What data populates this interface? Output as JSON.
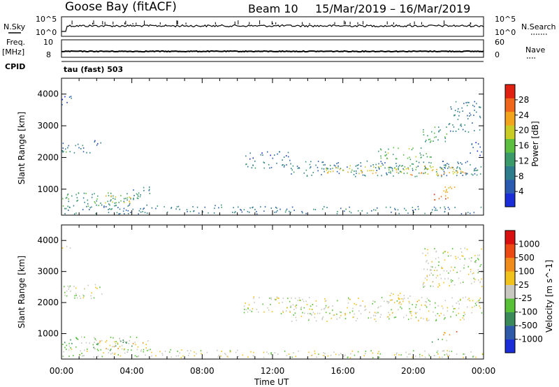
{
  "header": {
    "station": "Goose Bay (fitACF)",
    "beam": "Beam 10",
    "date_range": "15/Mar/2019 – 16/Mar/2019"
  },
  "top_panels": {
    "nsky_label": "N.Sky",
    "nsky_ticks": [
      "10^5",
      "10^0"
    ],
    "nsearch_label": "N.Search",
    "nsearch_ticks": [
      "10^5",
      "10^0"
    ],
    "freq_label_1": "Freq.",
    "freq_label_2": "[MHz]",
    "freq_ticks": [
      "10",
      "8"
    ],
    "nave_label": "Nave",
    "nave_ticks": [
      "60",
      "0"
    ],
    "cpid_label": "CPID",
    "cpid_value": "tau (fast) 503"
  },
  "colors": {
    "power_scale": [
      "#1a2dd6",
      "#2a5bb0",
      "#2e7d8c",
      "#3a9a6a",
      "#5cbf40",
      "#c8cc24",
      "#f2a51c",
      "#f0661a",
      "#e02010"
    ],
    "velocity_scale": [
      "#1a2dd6",
      "#2e5aa8",
      "#3a8a5a",
      "#58c036",
      "#c8c8c0",
      "#f2c21c",
      "#f08c1c",
      "#ec4a14",
      "#d81010"
    ]
  },
  "chart_data": [
    {
      "type": "heatmap",
      "title": "",
      "xlabel": "Time UT",
      "ylabel": "Slant Range [km]",
      "colorbar_label": "Power [dB]",
      "colorbar_ticks": [
        "28",
        "24",
        "20",
        "16",
        "12",
        "8",
        "4"
      ],
      "x_ticks": [
        "00:00",
        "04:00",
        "08:00",
        "12:00",
        "16:00",
        "20:00",
        "00:00"
      ],
      "y_ticks": [
        "1000",
        "2000",
        "3000",
        "4000"
      ],
      "xlim_hours": [
        0,
        24
      ],
      "ylim_km": [
        180,
        4500
      ],
      "regions": [
        {
          "t0": 0.0,
          "t1": 0.6,
          "r0": 3700,
          "r1": 4000,
          "level": 1
        },
        {
          "t0": 0.0,
          "t1": 1.8,
          "r0": 2100,
          "r1": 2500,
          "level": 2
        },
        {
          "t0": 0.0,
          "t1": 0.5,
          "r0": 2150,
          "r1": 2350,
          "level": 4
        },
        {
          "t0": 1.7,
          "t1": 2.3,
          "r0": 2400,
          "r1": 2600,
          "level": 1
        },
        {
          "t0": 0.0,
          "t1": 4.5,
          "r0": 450,
          "r1": 900,
          "level": 3
        },
        {
          "t0": 2.0,
          "t1": 4.0,
          "r0": 550,
          "r1": 800,
          "level": 5
        },
        {
          "t0": 0.0,
          "t1": 10.0,
          "r0": 180,
          "r1": 500,
          "level": 2
        },
        {
          "t0": 4.0,
          "t1": 5.0,
          "r0": 700,
          "r1": 1100,
          "level": 2
        },
        {
          "t0": 10.3,
          "t1": 24.0,
          "r0": 1650,
          "r1": 1900,
          "level": 2
        },
        {
          "t0": 10.3,
          "t1": 13.0,
          "r0": 1900,
          "r1": 2200,
          "level": 1
        },
        {
          "t0": 13.0,
          "t1": 24.0,
          "r0": 1400,
          "r1": 1700,
          "level": 2
        },
        {
          "t0": 15.0,
          "t1": 22.5,
          "r0": 1500,
          "r1": 1750,
          "level": 5
        },
        {
          "t0": 19.5,
          "t1": 23.0,
          "r0": 1450,
          "r1": 1650,
          "level": 6
        },
        {
          "t0": 18.0,
          "t1": 21.0,
          "r0": 1950,
          "r1": 2350,
          "level": 4
        },
        {
          "t0": 21.3,
          "t1": 22.6,
          "r0": 900,
          "r1": 1100,
          "level": 6
        },
        {
          "t0": 21.0,
          "t1": 22.0,
          "r0": 650,
          "r1": 850,
          "level": 7
        },
        {
          "t0": 20.5,
          "t1": 22.0,
          "r0": 2500,
          "r1": 3000,
          "level": 3
        },
        {
          "t0": 22.0,
          "t1": 23.8,
          "r0": 2800,
          "r1": 3800,
          "level": 2
        },
        {
          "t0": 23.2,
          "t1": 24.0,
          "r0": 2000,
          "r1": 2500,
          "level": 1
        },
        {
          "t0": 10.0,
          "t1": 24.0,
          "r0": 180,
          "r1": 450,
          "level": 2
        }
      ]
    },
    {
      "type": "heatmap",
      "title": "",
      "xlabel": "Time UT",
      "ylabel": "Slant Range [km]",
      "colorbar_label": "Velocity [m s^-1]",
      "colorbar_ticks": [
        "1000",
        "500",
        "100",
        "25",
        "-25",
        "-100",
        "-500",
        "-1000"
      ],
      "x_ticks": [
        "00:00",
        "04:00",
        "08:00",
        "12:00",
        "16:00",
        "20:00",
        "00:00"
      ],
      "y_ticks": [
        "1000",
        "2000",
        "3000",
        "4000"
      ],
      "xlim_hours": [
        0,
        24
      ],
      "ylim_km": [
        180,
        4500
      ],
      "regions": [
        {
          "t0": 0.0,
          "t1": 0.5,
          "r0": 3700,
          "r1": 3900,
          "level": 4
        },
        {
          "t0": 0.0,
          "t1": 2.3,
          "r0": 2150,
          "r1": 2600,
          "level": 4
        },
        {
          "t0": 0.0,
          "t1": 4.5,
          "r0": 450,
          "r1": 900,
          "level": 3
        },
        {
          "t0": 2.0,
          "t1": 5.0,
          "r0": 500,
          "r1": 800,
          "level": 5
        },
        {
          "t0": 0.0,
          "t1": 10.0,
          "r0": 180,
          "r1": 500,
          "level": 4
        },
        {
          "t0": 10.3,
          "t1": 24.0,
          "r0": 1650,
          "r1": 2200,
          "level": 4
        },
        {
          "t0": 13.0,
          "t1": 23.0,
          "r0": 1400,
          "r1": 1700,
          "level": 4
        },
        {
          "t0": 18.5,
          "t1": 20.5,
          "r0": 1950,
          "r1": 2350,
          "level": 5
        },
        {
          "t0": 21.5,
          "t1": 22.5,
          "r0": 900,
          "r1": 1100,
          "level": 6
        },
        {
          "t0": 21.0,
          "t1": 22.0,
          "r0": 650,
          "r1": 850,
          "level": 3
        },
        {
          "t0": 20.5,
          "t1": 24.0,
          "r0": 2500,
          "r1": 3800,
          "level": 4
        },
        {
          "t0": 10.0,
          "t1": 24.0,
          "r0": 180,
          "r1": 450,
          "level": 4
        }
      ]
    }
  ]
}
